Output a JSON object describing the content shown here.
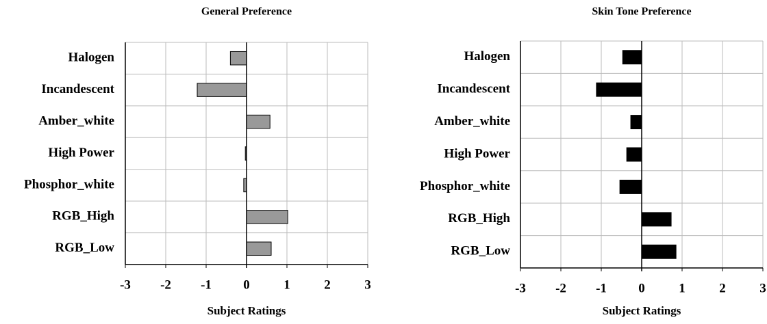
{
  "chart_data": [
    {
      "type": "bar",
      "orientation": "horizontal",
      "title": "General Preference",
      "xlabel": "Subject Ratings",
      "categories": [
        "Halogen",
        "Incandescent",
        "Amber_white",
        "High Power",
        "Phosphor_white",
        "RGB_High",
        "RGB_Low"
      ],
      "values": [
        -0.4,
        -1.22,
        0.58,
        -0.03,
        -0.07,
        1.02,
        0.61
      ],
      "color": "#999999",
      "edgecolor": "#000000",
      "xlim": [
        -3,
        3
      ],
      "xticks": [
        -3,
        -2,
        -1,
        0,
        1,
        2,
        3
      ],
      "grid": true
    },
    {
      "type": "bar",
      "orientation": "horizontal",
      "title": "Skin Tone Preference",
      "xlabel": "Subject Ratings",
      "categories": [
        "Halogen",
        "Incandescent",
        "Amber_white",
        "High Power",
        "Phosphor_white",
        "RGB_High",
        "RGB_Low"
      ],
      "values": [
        -0.47,
        -1.12,
        -0.27,
        -0.37,
        -0.54,
        0.73,
        0.85
      ],
      "color": "#000000",
      "edgecolor": "#000000",
      "xlim": [
        -3,
        3
      ],
      "xticks": [
        -3,
        -2,
        -1,
        0,
        1,
        2,
        3
      ],
      "grid": true
    }
  ]
}
